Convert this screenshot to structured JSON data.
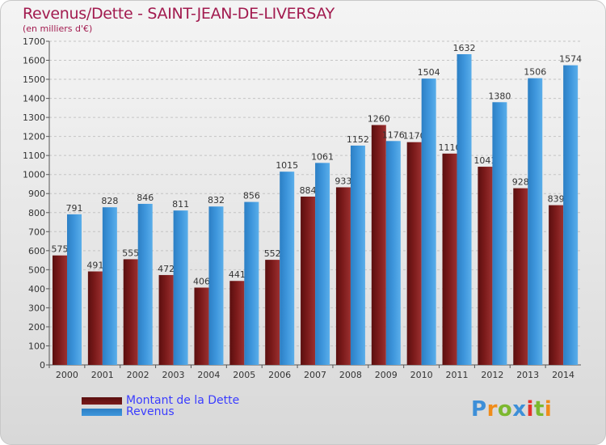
{
  "chart_title": "Revenus/Dette - SAINT-JEAN-DE-LIVERSAY",
  "chart_subtitle": "(en milliers d'€)",
  "legend": {
    "dette_label": "Montant de la Dette",
    "revenus_label": "Revenus"
  },
  "logo": {
    "text": "Proxiti"
  },
  "colors": {
    "dette": "#7a1a1a",
    "revenus": "#3e96dc",
    "title": "#a21b4f",
    "legend_text": "#3a3cff"
  },
  "chart_data": {
    "type": "bar",
    "title": "Revenus/Dette - SAINT-JEAN-DE-LIVERSAY",
    "subtitle": "(en milliers d'€)",
    "categories": [
      "2000",
      "2001",
      "2002",
      "2003",
      "2004",
      "2005",
      "2006",
      "2007",
      "2008",
      "2009",
      "2010",
      "2011",
      "2012",
      "2013",
      "2014"
    ],
    "series": [
      {
        "name": "Montant de la Dette",
        "values": [
          575,
          491,
          555,
          472,
          406,
          441,
          552,
          884,
          933,
          1260,
          1170,
          1110,
          1041,
          928,
          839
        ]
      },
      {
        "name": "Revenus",
        "values": [
          791,
          828,
          846,
          811,
          832,
          856,
          1015,
          1061,
          1152,
          1176,
          1504,
          1632,
          1380,
          1506,
          1574
        ]
      }
    ],
    "ylim": [
      0,
      1700
    ],
    "yticks": [
      0,
      100,
      200,
      300,
      400,
      500,
      600,
      700,
      800,
      900,
      1000,
      1100,
      1200,
      1300,
      1400,
      1500,
      1600,
      1700
    ],
    "grid": true,
    "legend_position": "bottom-left"
  }
}
